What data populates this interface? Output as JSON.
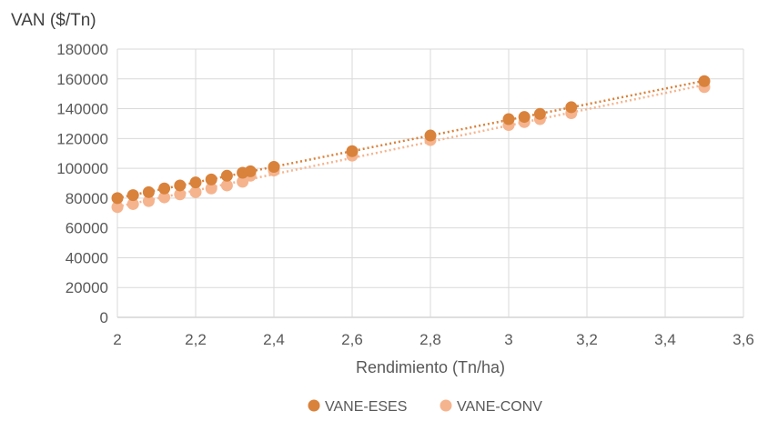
{
  "chart_data": {
    "type": "scatter",
    "ylabel": "VAN ($/Tn)",
    "xlabel": "Rendimiento (Tn/ha)",
    "xlim": [
      2,
      3.6
    ],
    "ylim": [
      0,
      180000
    ],
    "x_ticks": [
      "2",
      "2,2",
      "2,4",
      "2,6",
      "2,8",
      "3",
      "3,2",
      "3,4",
      "3,6"
    ],
    "y_ticks": [
      "0",
      "20000",
      "40000",
      "60000",
      "80000",
      "100000",
      "120000",
      "140000",
      "160000",
      "180000"
    ],
    "grid": true,
    "legend_position": "bottom",
    "trendlines": true,
    "series": [
      {
        "name": "VANE-ESES",
        "color": "#D9823B",
        "x": [
          2,
          2.04,
          2.08,
          2.12,
          2.16,
          2.2,
          2.24,
          2.28,
          2.32,
          2.34,
          2.4,
          2.6,
          2.8,
          3,
          3.04,
          3.08,
          3.16,
          3.5
        ],
        "y": [
          80000,
          82000,
          84000,
          86500,
          88500,
          90500,
          92500,
          95000,
          97000,
          98000,
          101000,
          111500,
          122000,
          133000,
          134500,
          136500,
          141000,
          158500
        ]
      },
      {
        "name": "VANE-CONV",
        "color": "#F5B48E",
        "x": [
          2,
          2.04,
          2.08,
          2.12,
          2.16,
          2.2,
          2.24,
          2.28,
          2.32,
          2.34,
          2.4,
          2.6,
          2.8,
          3,
          3.04,
          3.08,
          3.16,
          3.5
        ],
        "y": [
          74000,
          76000,
          78000,
          80500,
          82500,
          84000,
          86500,
          88500,
          91000,
          95000,
          98500,
          108500,
          119000,
          129000,
          131000,
          133000,
          137000,
          154500
        ]
      }
    ]
  }
}
